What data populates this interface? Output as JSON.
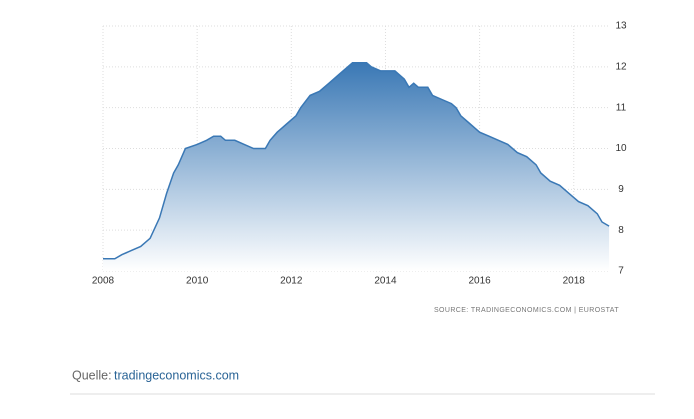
{
  "chart_data": {
    "type": "area",
    "x": [
      2008.0,
      2008.25,
      2008.4,
      2008.6,
      2008.8,
      2009.0,
      2009.2,
      2009.35,
      2009.5,
      2009.6,
      2009.75,
      2010.0,
      2010.2,
      2010.35,
      2010.5,
      2010.6,
      2010.8,
      2011.0,
      2011.2,
      2011.45,
      2011.55,
      2011.7,
      2011.9,
      2012.1,
      2012.2,
      2012.4,
      2012.6,
      2012.8,
      2013.0,
      2013.2,
      2013.3,
      2013.6,
      2013.7,
      2013.9,
      2014.2,
      2014.4,
      2014.5,
      2014.6,
      2014.7,
      2014.9,
      2015.0,
      2015.2,
      2015.4,
      2015.5,
      2015.6,
      2015.8,
      2016.0,
      2016.2,
      2016.4,
      2016.6,
      2016.8,
      2017.0,
      2017.2,
      2017.3,
      2017.5,
      2017.7,
      2017.9,
      2018.1,
      2018.3,
      2018.5,
      2018.6,
      2018.75
    ],
    "values": [
      7.3,
      7.3,
      7.4,
      7.5,
      7.6,
      7.8,
      8.3,
      8.9,
      9.4,
      9.6,
      10.0,
      10.1,
      10.2,
      10.3,
      10.3,
      10.2,
      10.2,
      10.1,
      10.0,
      10.0,
      10.2,
      10.4,
      10.6,
      10.8,
      11.0,
      11.3,
      11.4,
      11.6,
      11.8,
      12.0,
      12.1,
      12.1,
      12.0,
      11.9,
      11.9,
      11.7,
      11.5,
      11.6,
      11.5,
      11.5,
      11.3,
      11.2,
      11.1,
      11.0,
      10.8,
      10.6,
      10.4,
      10.3,
      10.2,
      10.1,
      9.9,
      9.8,
      9.6,
      9.4,
      9.2,
      9.1,
      8.9,
      8.7,
      8.6,
      8.4,
      8.2,
      8.1
    ],
    "color": "#3a78b5",
    "xlim": [
      2008,
      2018.77
    ],
    "xticks": [
      2008,
      2010,
      2012,
      2014,
      2016,
      2018
    ],
    "ylim": [
      7,
      13
    ],
    "yticks": [
      7,
      8,
      9,
      10,
      11,
      12,
      13
    ],
    "grid": true,
    "source": "SOURCE: TRADINGECONOMICS.COM | EUROSTAT"
  },
  "footer": {
    "label": "Quelle:",
    "link": "tradingeconomics.com"
  }
}
